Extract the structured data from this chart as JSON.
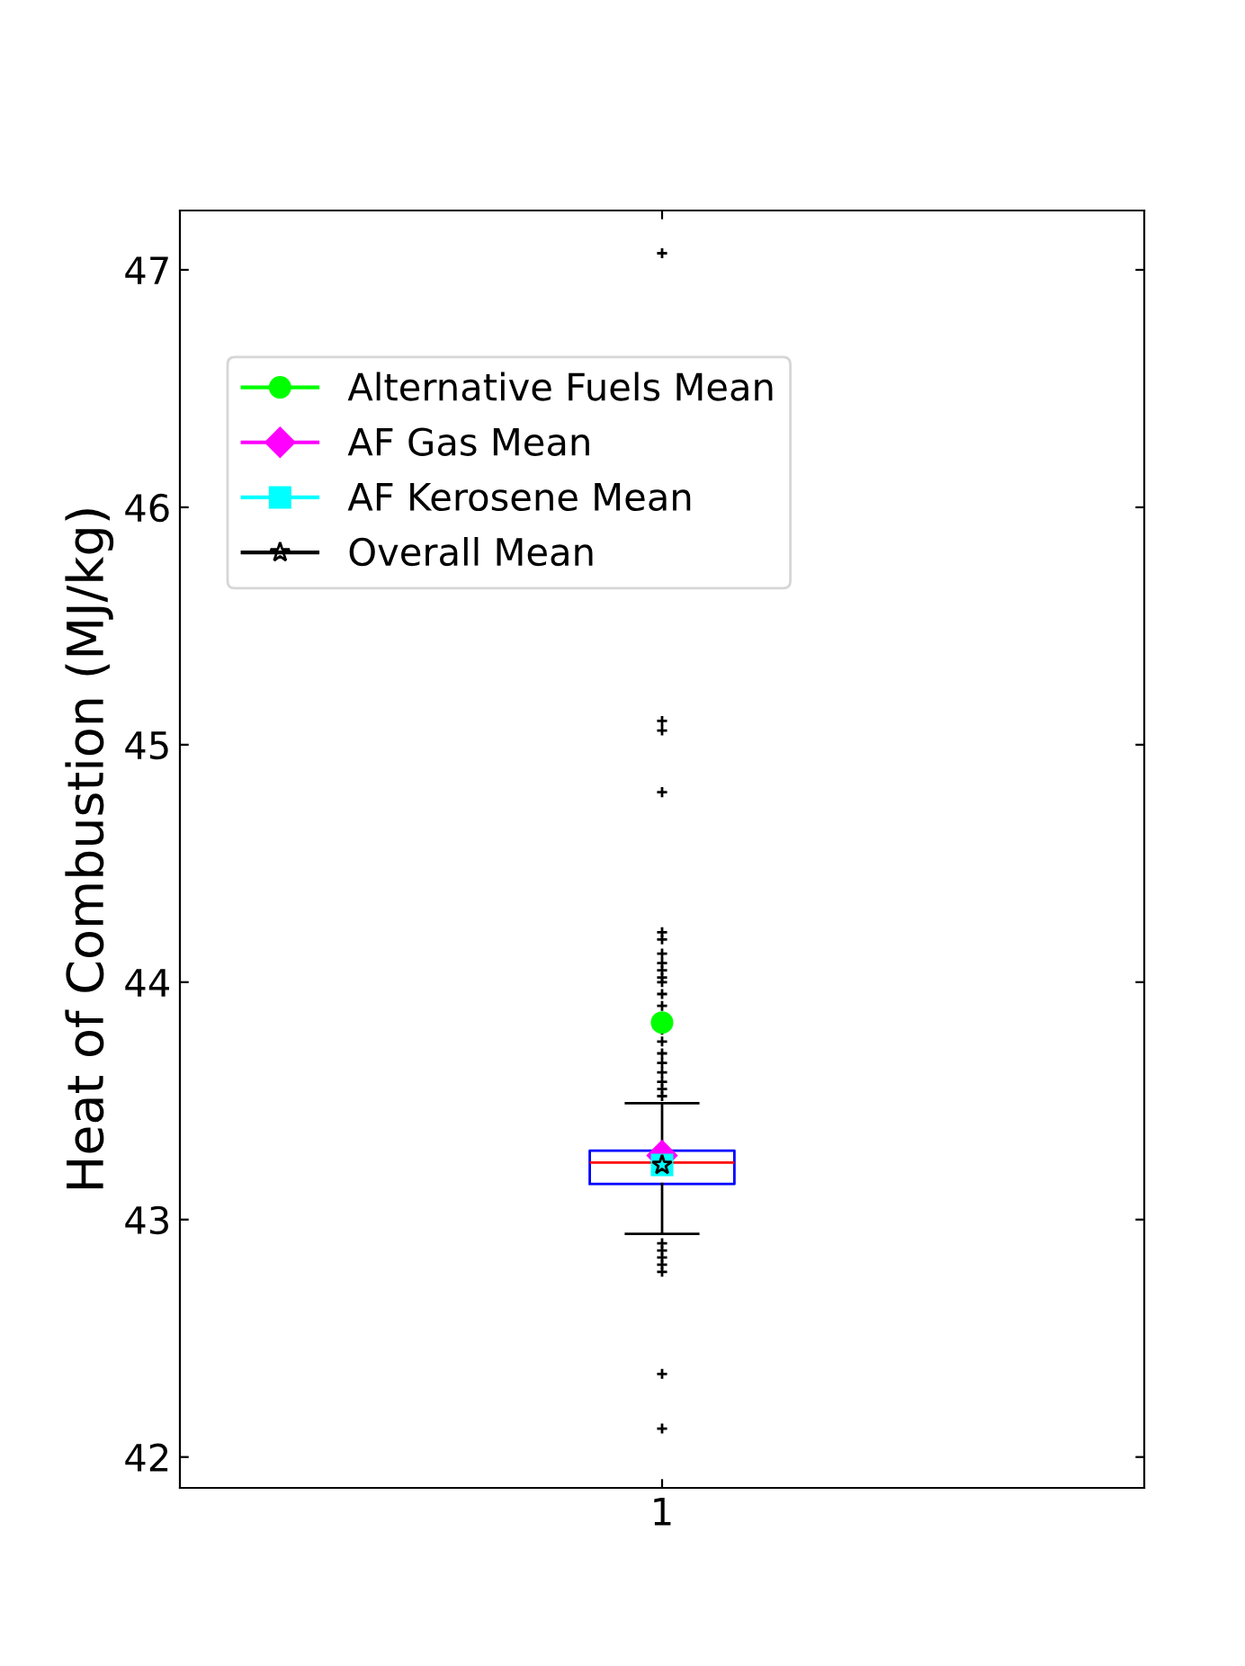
{
  "chart_data": {
    "type": "box",
    "ylabel": "Heat of Combustion (MJ/kg)",
    "categories": [
      "1"
    ],
    "ylim": [
      41.87,
      47.25
    ],
    "yticks": [
      42,
      43,
      44,
      45,
      46,
      47
    ],
    "grid": false,
    "legend": "top left",
    "series": [
      {
        "color": "#0000ff",
        "boxes": [
          {
            "low": 42.94,
            "q1": 43.15,
            "median": 43.24,
            "q3": 43.29,
            "high": 43.49,
            "outliers": [
              47.07,
              45.1,
              45.06,
              44.8,
              44.21,
              44.18,
              44.12,
              44.08,
              44.05,
              44.02,
              44.0,
              43.95,
              43.9,
              43.8,
              43.75,
              43.7,
              43.66,
              43.62,
              43.58,
              43.55,
              43.52,
              42.9,
              42.87,
              42.84,
              42.81,
              42.78,
              42.35,
              42.12
            ]
          }
        ]
      },
      {
        "type": "line",
        "name": "Alternative Fuels Mean",
        "color": "#00ff00",
        "marker": "circle",
        "x": [
          "1"
        ],
        "values": [
          43.83
        ]
      },
      {
        "type": "line",
        "name": "AF Gas Mean",
        "color": "#ff00ff",
        "marker": "diamond",
        "x": [
          "1"
        ],
        "values": [
          43.27
        ]
      },
      {
        "type": "line",
        "name": "AF Kerosene Mean",
        "color": "#00ffff",
        "marker": "square",
        "x": [
          "1"
        ],
        "values": [
          43.23
        ]
      },
      {
        "type": "line",
        "name": "Overall Mean",
        "color": "#000000",
        "marker": "star",
        "x": [
          "1"
        ],
        "values": [
          43.23
        ]
      }
    ]
  }
}
